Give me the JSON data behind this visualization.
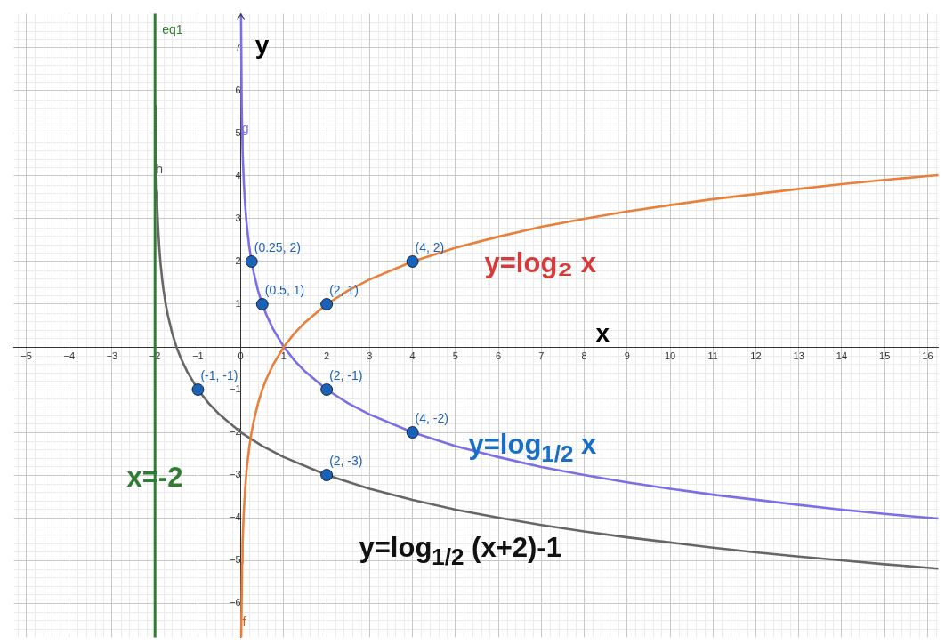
{
  "chart_data": {
    "type": "line",
    "xlabel": "x",
    "ylabel": "y",
    "xlim": [
      -5.29,
      16.25
    ],
    "ylim": [
      -6.8,
      7.8
    ],
    "xticks": [
      {
        "value": -5,
        "label": "−5"
      },
      {
        "value": -4,
        "label": "−4"
      },
      {
        "value": -3,
        "label": "−3"
      },
      {
        "value": -2,
        "label": "−2"
      },
      {
        "value": -1,
        "label": "−1"
      },
      0,
      1,
      2,
      3,
      4,
      5,
      6,
      7,
      8,
      9,
      10,
      11,
      12,
      13,
      14,
      15,
      16
    ],
    "yticks": [
      {
        "value": -6,
        "label": "−6"
      },
      {
        "value": -5,
        "label": "−5"
      },
      {
        "value": -4,
        "label": "−4"
      },
      {
        "value": -3,
        "label": "−3"
      },
      {
        "value": -2,
        "label": "−2"
      },
      {
        "value": -1,
        "label": "−1"
      },
      {
        "value": 0,
        "label": null
      },
      1,
      2,
      3,
      4,
      5,
      6,
      7
    ],
    "grid": true,
    "series": [
      {
        "color": "#e8803a",
        "x": [
          0.009,
          0.03,
          0.04,
          0.05,
          0.07,
          0.1,
          0.13,
          0.17,
          0.2,
          0.25,
          0.3,
          0.4,
          0.5,
          0.6,
          0.75,
          1,
          1.25,
          1.5,
          2,
          2.5,
          3,
          4,
          5,
          6,
          7,
          8,
          9,
          10,
          11,
          12,
          13,
          14,
          15,
          16,
          16.25
        ],
        "values": [
          -6.8,
          -5.06,
          -4.64,
          -4.32,
          -3.84,
          -3.32,
          -2.94,
          -2.56,
          -2.32,
          -2,
          -1.74,
          -1.32,
          -1,
          -0.74,
          -0.42,
          0,
          0.32,
          0.58,
          1,
          1.32,
          1.58,
          2,
          2.32,
          2.58,
          2.81,
          3,
          3.17,
          3.32,
          3.46,
          3.58,
          3.7,
          3.81,
          3.91,
          4,
          4.02
        ]
      },
      {
        "color": "#7b6ee6",
        "x": [
          0.0045,
          0.02,
          0.03,
          0.04,
          0.05,
          0.07,
          0.1,
          0.13,
          0.17,
          0.2,
          0.25,
          0.3,
          0.4,
          0.5,
          0.6,
          0.75,
          1,
          1.25,
          1.5,
          2,
          2.5,
          3,
          4,
          5,
          6,
          7,
          8,
          9,
          10,
          11,
          12,
          13,
          14,
          15,
          16,
          16.25
        ],
        "values": [
          7.8,
          5.64,
          5.06,
          4.64,
          4.32,
          3.84,
          3.32,
          2.94,
          2.56,
          2.32,
          2,
          1.74,
          1.32,
          1,
          0.74,
          0.42,
          0,
          -0.32,
          -0.58,
          -1,
          -1.32,
          -1.58,
          -2,
          -2.32,
          -2.58,
          -2.81,
          -3,
          -3.17,
          -3.32,
          -3.46,
          -3.58,
          -3.7,
          -3.81,
          -3.91,
          -4,
          -4.02
        ]
      },
      {
        "color": "#666666",
        "x": [
          -1.99,
          -1.98,
          -1.97,
          -1.96,
          -1.95,
          -1.93,
          -1.9,
          -1.87,
          -1.83,
          -1.8,
          -1.75,
          -1.7,
          -1.6,
          -1.5,
          -1.4,
          -1.25,
          -1,
          -0.75,
          -0.5,
          0,
          0.5,
          1,
          2,
          3,
          4,
          5,
          6,
          7,
          8,
          9,
          10,
          11,
          12,
          13,
          14,
          15,
          16,
          16.25
        ],
        "values": [
          5.64,
          4.64,
          4.06,
          3.64,
          3.32,
          2.84,
          2.32,
          1.94,
          1.56,
          1.32,
          1,
          0.74,
          0.32,
          0,
          -0.26,
          -0.58,
          -1,
          -1.32,
          -1.58,
          -2,
          -2.32,
          -2.58,
          -3,
          -3.32,
          -3.58,
          -3.81,
          -4,
          -4.17,
          -4.32,
          -4.46,
          -4.58,
          -4.7,
          -4.81,
          -4.91,
          -5,
          -5.09,
          -5.17,
          -5.19
        ]
      },
      {
        "type": "scatter",
        "marker": "circle",
        "color": "#1a62b8",
        "x": [
          0.25,
          0.5,
          2,
          4,
          -1,
          2,
          4,
          2
        ],
        "values": [
          2,
          1,
          1,
          2,
          -1,
          -1,
          -2,
          -3
        ],
        "value_labels": [
          "(0.25, 2)",
          "(0.5, 1)",
          "(2, 1)",
          "(4, 2)",
          "(-1, -1)",
          "(2, -1)",
          "(4, -2)",
          "(2, -3)"
        ]
      }
    ],
    "ref_lines": [
      {
        "axis": "x",
        "value": -2,
        "label": "eq1",
        "color": "#2e7d32"
      }
    ],
    "annotations": [
      "y=log₂ x",
      "y=log$_{1/2}$ x",
      "y=log$_{1/2}$ (x+2)-1",
      "x=-2",
      {
        "text": "g",
        "x": 0.02,
        "y": 5.1
      },
      {
        "text": "h",
        "x": -1.98,
        "y": 4.15
      },
      {
        "text": "f",
        "x": 0.04,
        "y": -6.45
      }
    ]
  }
}
